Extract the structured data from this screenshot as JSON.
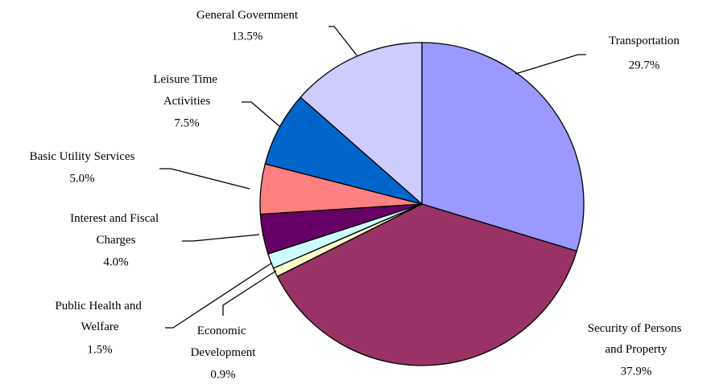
{
  "chart_data": {
    "type": "pie",
    "categories": [
      "Transportation",
      "Security of Persons and Property",
      "Economic Development",
      "Public Health and Welfare",
      "Interest and Fiscal Charges",
      "Basic Utility Services",
      "Leisure Time Activities",
      "General Government"
    ],
    "values": [
      29.7,
      37.9,
      0.9,
      1.5,
      4.0,
      5.0,
      7.5,
      13.5
    ],
    "value_labels": [
      "29.7%",
      "37.9%",
      "0.9%",
      "1.5%",
      "4.0%",
      "5.0%",
      "7.5%",
      "13.5%"
    ],
    "colors": [
      "#9999ff",
      "#993366",
      "#ffffcc",
      "#ccffff",
      "#660066",
      "#ff8080",
      "#0066cc",
      "#ccccff"
    ]
  }
}
